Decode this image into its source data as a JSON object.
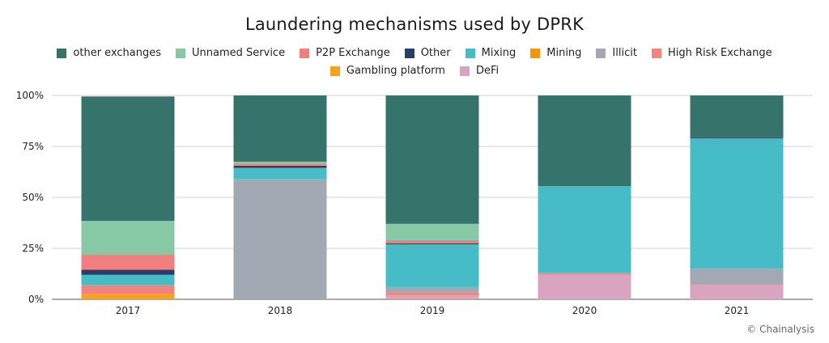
{
  "title": "Laundering mechanisms used by DPRK",
  "credit": "© Chainalysis",
  "chart_data": {
    "type": "bar",
    "stacked": true,
    "title": "Laundering mechanisms used by DPRK",
    "categories": [
      "2017",
      "2018",
      "2019",
      "2020",
      "2021"
    ],
    "ylim": [
      0,
      100
    ],
    "yticks": [
      "0%",
      "25%",
      "50%",
      "75%",
      "100%"
    ],
    "grid": true,
    "legend_position": "top",
    "series": [
      {
        "name": "Gambling platform",
        "color": "#f6a21a",
        "values": [
          2.5,
          0,
          0.5,
          0,
          0
        ]
      },
      {
        "name": "DeFi",
        "color": "#d9a4bf",
        "values": [
          0,
          0,
          1.5,
          12,
          7
        ]
      },
      {
        "name": "High Risk Exchange",
        "color": "#f1857d",
        "values": [
          4.5,
          0,
          1.5,
          1,
          0.5
        ]
      },
      {
        "name": "Illicit",
        "color": "#a2a9b2",
        "values": [
          0,
          59,
          2.5,
          0,
          7.5
        ]
      },
      {
        "name": "Mining",
        "color": "#f2960c",
        "values": [
          0,
          0,
          0,
          0,
          0
        ]
      },
      {
        "name": "Mixing",
        "color": "#45bcc6",
        "values": [
          5,
          5.5,
          21,
          42.5,
          64
        ]
      },
      {
        "name": "Other",
        "color": "#253f6a",
        "values": [
          2.5,
          1,
          0.5,
          0,
          0.5
        ]
      },
      {
        "name": "P2P Exchange",
        "color": "#f17f7f",
        "values": [
          7.5,
          1,
          1.5,
          0,
          0
        ]
      },
      {
        "name": "Unnamed Service",
        "color": "#88c9a5",
        "values": [
          16.5,
          1,
          8,
          0,
          0
        ]
      },
      {
        "name": "other exchanges",
        "color": "#36736a",
        "values": [
          61,
          32.5,
          63,
          44.5,
          20.5
        ]
      }
    ]
  },
  "legend": [
    {
      "label": "other exchanges",
      "color": "#36736a"
    },
    {
      "label": "Unnamed Service",
      "color": "#88c9a5"
    },
    {
      "label": "P2P Exchange",
      "color": "#f17f7f"
    },
    {
      "label": "Other",
      "color": "#253f6a"
    },
    {
      "label": "Mixing",
      "color": "#45bcc6"
    },
    {
      "label": "Mining",
      "color": "#f2960c"
    },
    {
      "label": "Illicit",
      "color": "#a2a9b2"
    },
    {
      "label": "High Risk Exchange",
      "color": "#f1857d"
    },
    {
      "label": "Gambling platform",
      "color": "#f6a21a"
    },
    {
      "label": "DeFi",
      "color": "#d9a4bf"
    }
  ]
}
